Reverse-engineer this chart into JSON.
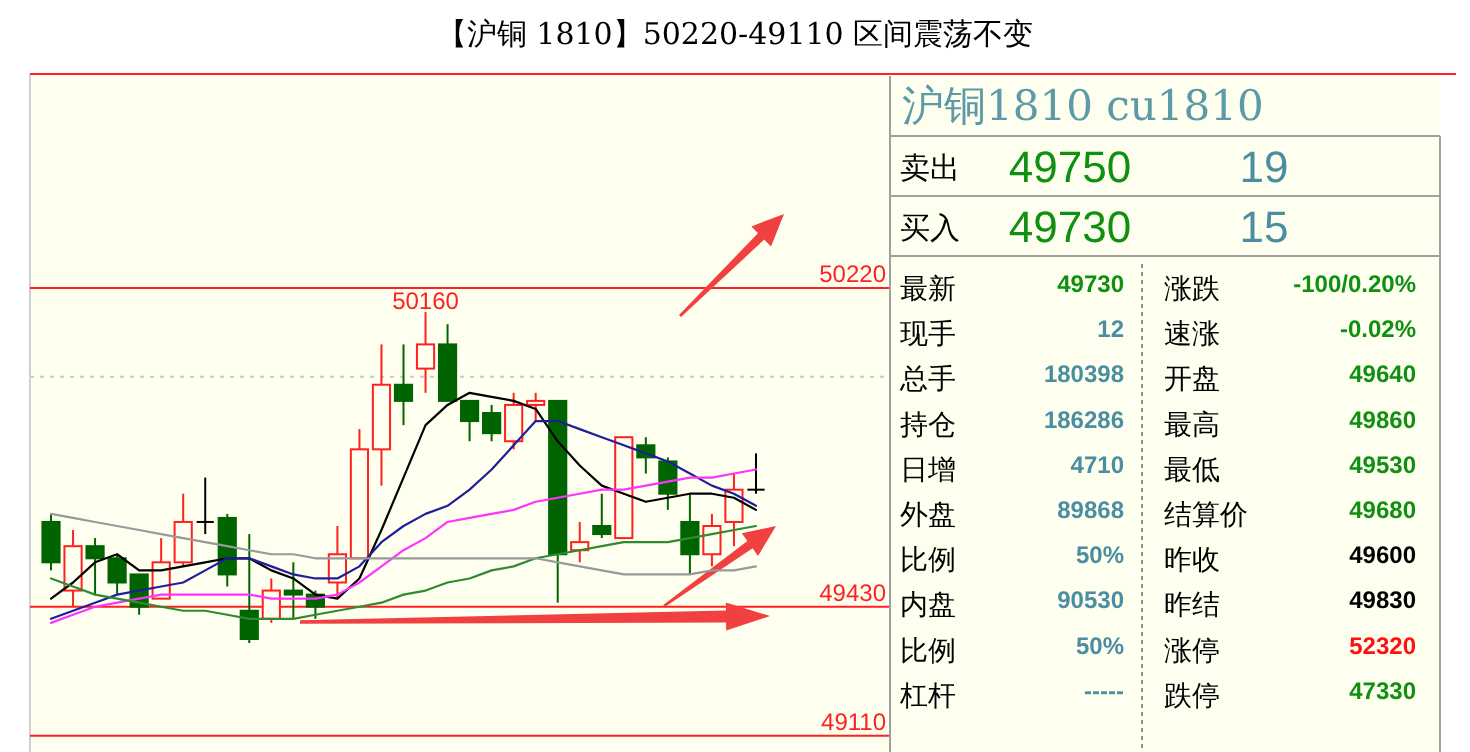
{
  "chart_data": [
    {
      "type": "candlestick",
      "title": "【沪铜 1810】50220-49110 区间震荡不变",
      "categories": [
        null,
        null,
        null,
        null,
        null,
        null,
        null,
        null,
        null,
        null,
        null,
        null,
        null,
        null,
        null,
        null,
        null,
        null,
        null,
        null,
        null,
        null,
        null,
        null,
        null,
        null,
        null,
        null,
        null,
        null,
        null,
        null,
        null
      ],
      "ohlc": [
        [
          49640,
          49660,
          49520,
          49540
        ],
        [
          49470,
          49620,
          49430,
          49580
        ],
        [
          49580,
          49600,
          49460,
          49550
        ],
        [
          49550,
          49560,
          49460,
          49490
        ],
        [
          49510,
          49510,
          49410,
          49430
        ],
        [
          49450,
          49600,
          49450,
          49540
        ],
        [
          49540,
          49710,
          49530,
          49640
        ],
        [
          49640,
          49750,
          49610,
          49640
        ],
        [
          49650,
          49660,
          49480,
          49510
        ],
        [
          49420,
          49610,
          49340,
          49350
        ],
        [
          49400,
          49500,
          49390,
          49470
        ],
        [
          49470,
          49540,
          49400,
          49460
        ],
        [
          49460,
          49470,
          49400,
          49430
        ],
        [
          49490,
          49630,
          49450,
          49560
        ],
        [
          49550,
          49870,
          49550,
          49820
        ],
        [
          49820,
          50080,
          49730,
          49980
        ],
        [
          49980,
          50080,
          49880,
          49940
        ],
        [
          50020,
          50160,
          49960,
          50080
        ],
        [
          50080,
          50130,
          49940,
          49940
        ],
        [
          49940,
          49940,
          49840,
          49890
        ],
        [
          49910,
          49930,
          49840,
          49860
        ],
        [
          49840,
          49960,
          49820,
          49930
        ],
        [
          49930,
          49960,
          49890,
          49940
        ],
        [
          49940,
          49940,
          49440,
          49560
        ],
        [
          49570,
          49640,
          49540,
          49590
        ],
        [
          49630,
          49710,
          49600,
          49610
        ],
        [
          49600,
          49850,
          49600,
          49850
        ],
        [
          49830,
          49850,
          49760,
          49800
        ],
        [
          49790,
          49800,
          49670,
          49710
        ],
        [
          49640,
          49710,
          49510,
          49560
        ],
        [
          49560,
          49660,
          49530,
          49630
        ],
        [
          49640,
          49760,
          49580,
          49720
        ],
        [
          49720,
          49810,
          49710,
          49720
        ]
      ],
      "series": [
        {
          "type": "line",
          "color": "#000000",
          "values": [
            49450,
            49490,
            49540,
            49560,
            49520,
            49520,
            49530,
            49540,
            49550,
            49550,
            49520,
            49500,
            49460,
            49450,
            49500,
            49620,
            49750,
            49880,
            49930,
            49960,
            49950,
            49940,
            49920,
            49840,
            49780,
            49730,
            49710,
            49690,
            49700,
            49710,
            49710,
            49700,
            49670
          ]
        },
        {
          "type": "line",
          "color": "#1f1f9a",
          "values": [
            49400,
            49420,
            49440,
            49460,
            49470,
            49480,
            49490,
            49520,
            49550,
            49550,
            49530,
            49510,
            49500,
            49500,
            49530,
            49590,
            49630,
            49660,
            49680,
            49720,
            49770,
            49830,
            49890,
            49890,
            49870,
            49850,
            49830,
            49810,
            49790,
            49760,
            49730,
            49710,
            49680
          ]
        },
        {
          "type": "line",
          "color": "#ff33ff",
          "values": [
            49390,
            49410,
            49430,
            49440,
            49450,
            49460,
            49460,
            49460,
            49460,
            49460,
            49450,
            49450,
            49450,
            49460,
            49490,
            49530,
            49570,
            49600,
            49640,
            49650,
            49660,
            49670,
            49690,
            49700,
            49710,
            49720,
            49720,
            49730,
            49740,
            49750,
            49750,
            49760,
            49770
          ]
        },
        {
          "type": "line",
          "color": "#2e8b2e",
          "values": [
            49500,
            49480,
            49460,
            49450,
            49440,
            49430,
            49420,
            49420,
            49410,
            49400,
            49400,
            49400,
            49410,
            49420,
            49430,
            49440,
            49460,
            49470,
            49490,
            49500,
            49520,
            49530,
            49550,
            49560,
            49570,
            49580,
            49590,
            49590,
            49590,
            49600,
            49610,
            49620,
            49630
          ]
        },
        {
          "type": "line",
          "color": "#999999",
          "values": [
            49660,
            49650,
            49640,
            49630,
            49620,
            49610,
            49600,
            49590,
            49580,
            49570,
            49560,
            49560,
            49550,
            49550,
            49550,
            49550,
            49550,
            49550,
            49550,
            49550,
            49550,
            49550,
            49550,
            49540,
            49530,
            49520,
            49510,
            49510,
            49510,
            49510,
            49520,
            49520,
            49530
          ]
        }
      ],
      "ylim": [
        49070,
        50750
      ],
      "ref_lines": [
        {
          "axis": "y",
          "value": 50220,
          "label": "50220",
          "color": "#ff2020"
        },
        {
          "axis": "y",
          "value": 50000,
          "label": null,
          "color": "#c8c8c8",
          "line_style": "dotted"
        },
        {
          "axis": "y",
          "value": 49430,
          "label": "49430",
          "color": "#ff2020"
        },
        {
          "axis": "y",
          "value": 49110,
          "label": "49110",
          "color": "#ff2020"
        }
      ],
      "annotations": [
        {
          "text": "50160",
          "y": 50160
        }
      ],
      "tick_labels": false
    },
    {
      "type": "other",
      "title": "沪铜1810  cu1810",
      "annotations": [
        "卖出",
        "49750",
        "19",
        "买入",
        "49730",
        "15",
        "最新",
        "49730",
        "涨跌",
        "-100/0.20%",
        "现手",
        "12",
        "速涨",
        "-0.02%",
        "总手",
        "180398",
        "开盘",
        "49640",
        "持仓",
        "186286",
        "最高",
        "49860",
        "日增",
        "4710",
        "最低",
        "49530",
        "外盘",
        "89868",
        "结算价",
        "49680",
        "比例",
        "50%",
        "昨收",
        "49600",
        "内盘",
        "90530",
        "昨结",
        "49830",
        "比例",
        "50%",
        "涨停",
        "52320",
        "杠杆",
        "-----",
        "跌停",
        "47330"
      ]
    }
  ]
}
